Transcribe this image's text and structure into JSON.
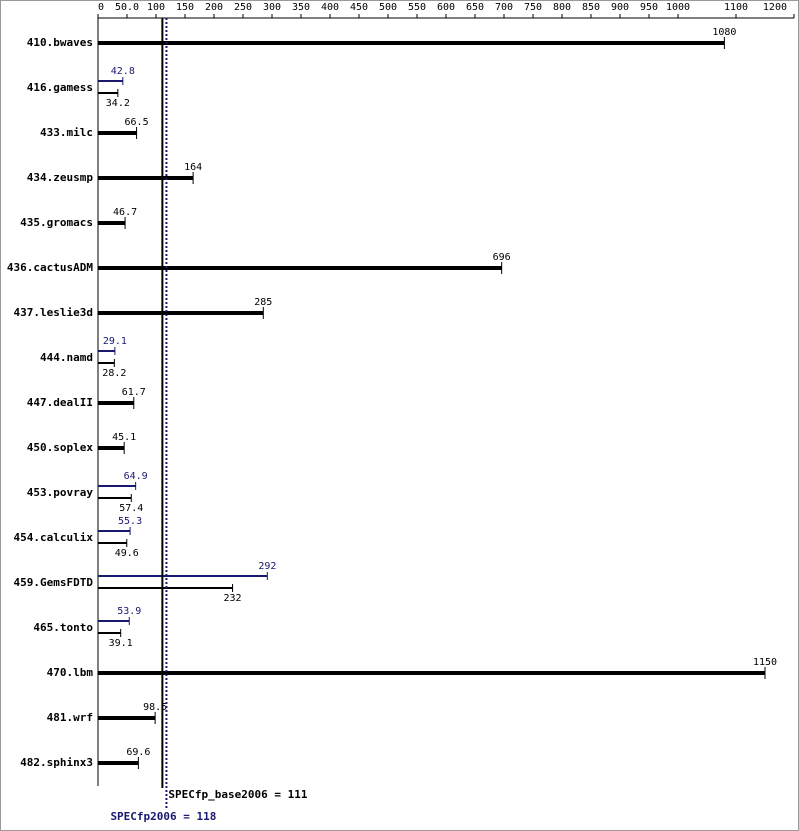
{
  "chart_data": {
    "type": "bar",
    "categories": [
      "410.bwaves",
      "416.gamess",
      "433.milc",
      "434.zeusmp",
      "435.gromacs",
      "436.cactusADM",
      "437.leslie3d",
      "444.namd",
      "447.dealII",
      "450.soplex",
      "453.povray",
      "454.calculix",
      "459.GemsFDTD",
      "465.tonto",
      "470.lbm",
      "481.wrf",
      "482.sphinx3"
    ],
    "series": [
      {
        "color": "#000000",
        "values": [
          1080,
          34.2,
          66.5,
          164,
          46.7,
          696,
          285,
          28.2,
          61.7,
          45.1,
          57.4,
          49.6,
          232,
          39.1,
          1150,
          98.5,
          69.6
        ]
      },
      {
        "color": "#191970",
        "values": [
          null,
          42.8,
          null,
          null,
          null,
          null,
          null,
          29.1,
          null,
          null,
          64.9,
          55.3,
          292,
          53.9,
          null,
          null,
          null
        ]
      }
    ],
    "xlim": [
      0,
      1200
    ],
    "xticks": [
      0,
      {
        "value": 50,
        "label": "50.0"
      },
      100,
      150,
      200,
      250,
      300,
      350,
      400,
      450,
      500,
      550,
      600,
      650,
      700,
      750,
      800,
      850,
      900,
      950,
      1000,
      1100,
      1200
    ],
    "reference_lines": [
      {
        "label": "SPECfp_base2006 = 111",
        "value": 111,
        "color": "#000000"
      },
      {
        "label": "SPECfp2006 = 118",
        "value": 118,
        "color": "#191970"
      }
    ]
  }
}
